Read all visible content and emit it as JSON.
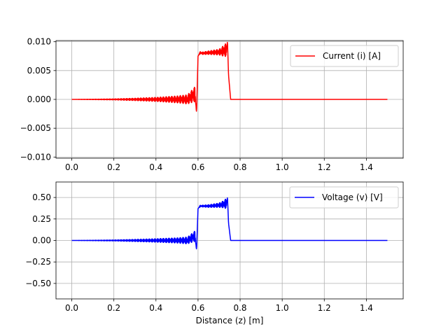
{
  "chart_data": [
    {
      "type": "line",
      "title": "",
      "xlabel": "",
      "ylabel": "",
      "xlim": [
        -0.075,
        1.575
      ],
      "ylim": [
        -0.0102,
        0.0102
      ],
      "xticks": [
        0.0,
        0.2,
        0.4,
        0.6,
        0.8,
        1.0,
        1.2,
        1.4
      ],
      "xtick_labels": [
        "0.0",
        "0.2",
        "0.4",
        "0.6",
        "0.8",
        "1.0",
        "1.2",
        "1.4"
      ],
      "yticks": [
        -0.01,
        -0.005,
        0.0,
        0.005,
        0.01
      ],
      "ytick_labels": [
        "−0.010",
        "−0.005",
        "0.000",
        "0.005",
        "0.010"
      ],
      "grid": true,
      "legend_position": "top-right",
      "series": [
        {
          "name": "Current (i) [A]",
          "color": "#ff0000",
          "x": [
            0.0,
            0.1,
            0.2,
            0.3,
            0.4,
            0.5,
            0.55,
            0.585,
            0.593,
            0.6,
            0.61,
            0.62,
            0.65,
            0.7,
            0.72,
            0.735,
            0.74,
            0.745,
            0.755,
            0.76,
            0.8,
            1.0,
            1.2,
            1.4,
            1.5
          ],
          "y": [
            0.0,
            0.0,
            0.0,
            0.0,
            0.0,
            0.0,
            0.0,
            0.0009,
            -0.0023,
            0.0075,
            0.0081,
            0.008,
            0.0081,
            0.0082,
            0.0084,
            0.0086,
            0.01,
            0.0042,
            0.0,
            0.0,
            0.0,
            0.0,
            0.0,
            0.0,
            0.0
          ],
          "oscillation_amplitude": [
            0.0,
            3e-05,
            8e-05,
            0.0002,
            0.00035,
            0.0006,
            0.0008,
            0.0013,
            0.0,
            0.0,
            0.0002,
            0.0002,
            0.0003,
            0.0005,
            0.0009,
            0.0012,
            0.0,
            0.0,
            0.0,
            0.0,
            0.0,
            0.0,
            0.0,
            0.0,
            0.0
          ]
        }
      ]
    },
    {
      "type": "line",
      "title": "",
      "xlabel": "Distance (z) [m]",
      "ylabel": "",
      "xlim": [
        -0.075,
        1.575
      ],
      "ylim": [
        -0.68,
        0.68
      ],
      "xticks": [
        0.0,
        0.2,
        0.4,
        0.6,
        0.8,
        1.0,
        1.2,
        1.4
      ],
      "xtick_labels": [
        "0.0",
        "0.2",
        "0.4",
        "0.6",
        "0.8",
        "1.0",
        "1.2",
        "1.4"
      ],
      "yticks": [
        -0.5,
        -0.25,
        0.0,
        0.25,
        0.5
      ],
      "ytick_labels": [
        "−0.50",
        "−0.25",
        "0.00",
        "0.25",
        "0.50"
      ],
      "grid": true,
      "legend_position": "top-right",
      "series": [
        {
          "name": "Voltage (v) [V]",
          "color": "#0000ff",
          "x": [
            0.0,
            0.1,
            0.2,
            0.3,
            0.4,
            0.5,
            0.55,
            0.585,
            0.593,
            0.6,
            0.61,
            0.62,
            0.65,
            0.7,
            0.72,
            0.735,
            0.74,
            0.745,
            0.755,
            0.76,
            0.8,
            1.0,
            1.2,
            1.4,
            1.5
          ],
          "y": [
            0.0,
            0.0,
            0.0,
            0.0,
            0.0,
            0.0,
            0.0,
            0.05,
            -0.11,
            0.37,
            0.4,
            0.4,
            0.4,
            0.41,
            0.42,
            0.43,
            0.5,
            0.2,
            0.0,
            0.0,
            0.0,
            0.0,
            0.0,
            0.0,
            0.0
          ],
          "oscillation_amplitude": [
            0.0,
            0.002,
            0.005,
            0.012,
            0.02,
            0.03,
            0.04,
            0.06,
            0.0,
            0.0,
            0.01,
            0.01,
            0.015,
            0.025,
            0.04,
            0.06,
            0.0,
            0.0,
            0.0,
            0.0,
            0.0,
            0.0,
            0.0,
            0.0,
            0.0
          ]
        }
      ]
    }
  ]
}
